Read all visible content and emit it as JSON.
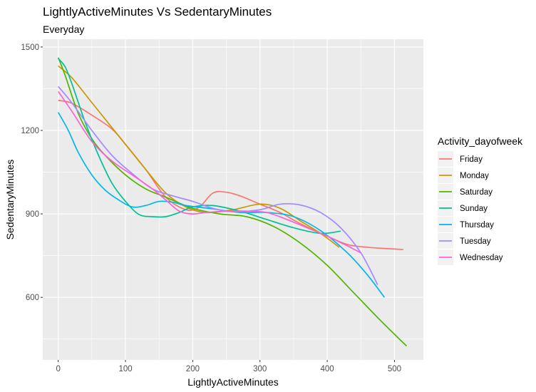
{
  "chart_data": {
    "type": "line",
    "title": "LightlyActiveMinutes Vs SedentaryMinutes",
    "subtitle": "Everyday",
    "xlabel": "LightlyActiveMinutes",
    "ylabel": "SedentaryMinutes",
    "xlim": [
      -23,
      543
    ],
    "ylim": [
      375,
      1528
    ],
    "x_ticks": [
      0,
      100,
      200,
      300,
      400,
      500
    ],
    "y_ticks": [
      600,
      900,
      1200,
      1500
    ],
    "grid": true,
    "legend_title": "Activity_dayofweek",
    "legend_position": "right",
    "background": "#ebebeb",
    "series": [
      {
        "name": "Friday",
        "color": "#F8766D",
        "x": [
          0,
          20,
          50,
          80,
          100,
          130,
          160,
          190,
          210,
          230,
          250,
          270,
          300,
          330,
          360,
          400,
          430,
          460,
          490,
          513
        ],
        "y": [
          1308,
          1298,
          1255,
          1205,
          1150,
          1060,
          960,
          915,
          925,
          975,
          978,
          965,
          935,
          905,
          865,
          820,
          790,
          780,
          775,
          772
        ]
      },
      {
        "name": "Monday",
        "color": "#C49A00",
        "x": [
          0,
          20,
          50,
          80,
          100,
          130,
          160,
          190,
          220,
          260,
          300,
          330,
          360,
          390,
          418
        ],
        "y": [
          1432,
          1390,
          1300,
          1210,
          1150,
          1060,
          975,
          925,
          905,
          915,
          935,
          920,
          875,
          830,
          780
        ]
      },
      {
        "name": "Saturday",
        "color": "#53B400",
        "x": [
          0,
          10,
          30,
          50,
          70,
          100,
          130,
          160,
          200,
          240,
          280,
          320,
          360,
          400,
          440,
          480,
          518
        ],
        "y": [
          1462,
          1400,
          1260,
          1170,
          1110,
          1040,
          990,
          960,
          920,
          900,
          890,
          855,
          795,
          715,
          615,
          515,
          425
        ]
      },
      {
        "name": "Sunday",
        "color": "#00C094",
        "x": [
          0,
          10,
          20,
          40,
          60,
          80,
          100,
          120,
          140,
          160,
          180,
          200,
          230,
          270,
          310,
          350,
          390,
          420
        ],
        "y": [
          1458,
          1430,
          1370,
          1230,
          1110,
          1010,
          945,
          898,
          890,
          890,
          905,
          925,
          930,
          910,
          880,
          850,
          830,
          838
        ]
      },
      {
        "name": "Thursday",
        "color": "#00B6EB",
        "x": [
          0,
          15,
          30,
          50,
          70,
          90,
          110,
          130,
          150,
          170,
          190,
          230,
          270,
          310,
          350,
          390,
          430,
          460,
          485
        ],
        "y": [
          1265,
          1200,
          1120,
          1040,
          985,
          950,
          925,
          930,
          945,
          942,
          930,
          918,
          905,
          905,
          890,
          840,
          760,
          680,
          600
        ]
      },
      {
        "name": "Tuesday",
        "color": "#A58AFF",
        "x": [
          0,
          20,
          50,
          80,
          110,
          140,
          170,
          200,
          230,
          260,
          300,
          330,
          360,
          390,
          420,
          450,
          475
        ],
        "y": [
          1358,
          1300,
          1200,
          1110,
          1045,
          990,
          965,
          945,
          920,
          908,
          915,
          935,
          932,
          905,
          850,
          760,
          645
        ]
      },
      {
        "name": "Wednesday",
        "color": "#FB61D7",
        "x": [
          0,
          20,
          50,
          80,
          110,
          140,
          160,
          180,
          200,
          220,
          250,
          280,
          310,
          340,
          370,
          400,
          430,
          450
        ],
        "y": [
          1340,
          1270,
          1160,
          1090,
          1040,
          990,
          950,
          910,
          900,
          905,
          910,
          910,
          905,
          880,
          850,
          820,
          785,
          760
        ]
      }
    ]
  }
}
